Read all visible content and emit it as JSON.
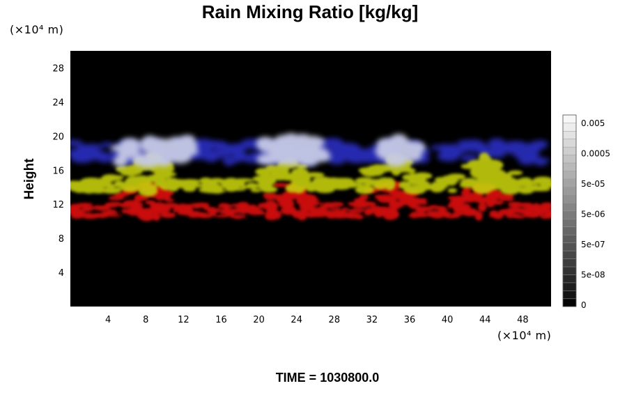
{
  "chart_data": {
    "type": "heatmap",
    "title": "Rain Mixing Ratio [kg/kg]",
    "ylabel": "Height",
    "y_unit_label": "(×10⁴ m)",
    "x_unit_label": "(×10⁴ m)",
    "x_ticks": [
      "4",
      "8",
      "12",
      "16",
      "20",
      "24",
      "28",
      "32",
      "36",
      "40",
      "44",
      "48"
    ],
    "y_ticks": [
      "4",
      "8",
      "12",
      "16",
      "20",
      "24",
      "28"
    ],
    "xlim": [
      0,
      51
    ],
    "ylim": [
      0,
      30
    ],
    "footer": "TIME = 1030800.0",
    "colorbar": {
      "labels": [
        "0",
        "5e-08",
        "5e-07",
        "5e-06",
        "5e-05",
        "0.0005",
        "0.005"
      ],
      "gray_levels": [
        "#050505",
        "#141414",
        "#1e1e1e",
        "#282828",
        "#333333",
        "#3d3d3d",
        "#474747",
        "#525252",
        "#5c5c5c",
        "#666666",
        "#717171",
        "#7b7b7b",
        "#858585",
        "#909090",
        "#9a9a9a",
        "#a4a4a4",
        "#afafaf",
        "#b9b9b9",
        "#c3c3c3",
        "#cecece",
        "#d8d8d8",
        "#e2e2e2",
        "#ededed",
        "#f7f7f7"
      ]
    },
    "layers": [
      {
        "name": "red band",
        "color": "#d40e0e",
        "y_bottom": 10.5,
        "y_top": 14.5
      },
      {
        "name": "yellow band",
        "color": "#c5cf10",
        "y_bottom": 13.5,
        "y_top": 17.5
      },
      {
        "name": "blue band",
        "color": "#2c2ec2",
        "y_bottom": 17,
        "y_top": 19.5
      },
      {
        "name": "white tops",
        "color": "#c7cbe6",
        "y_bottom": 17,
        "y_top": 19.7
      }
    ]
  }
}
